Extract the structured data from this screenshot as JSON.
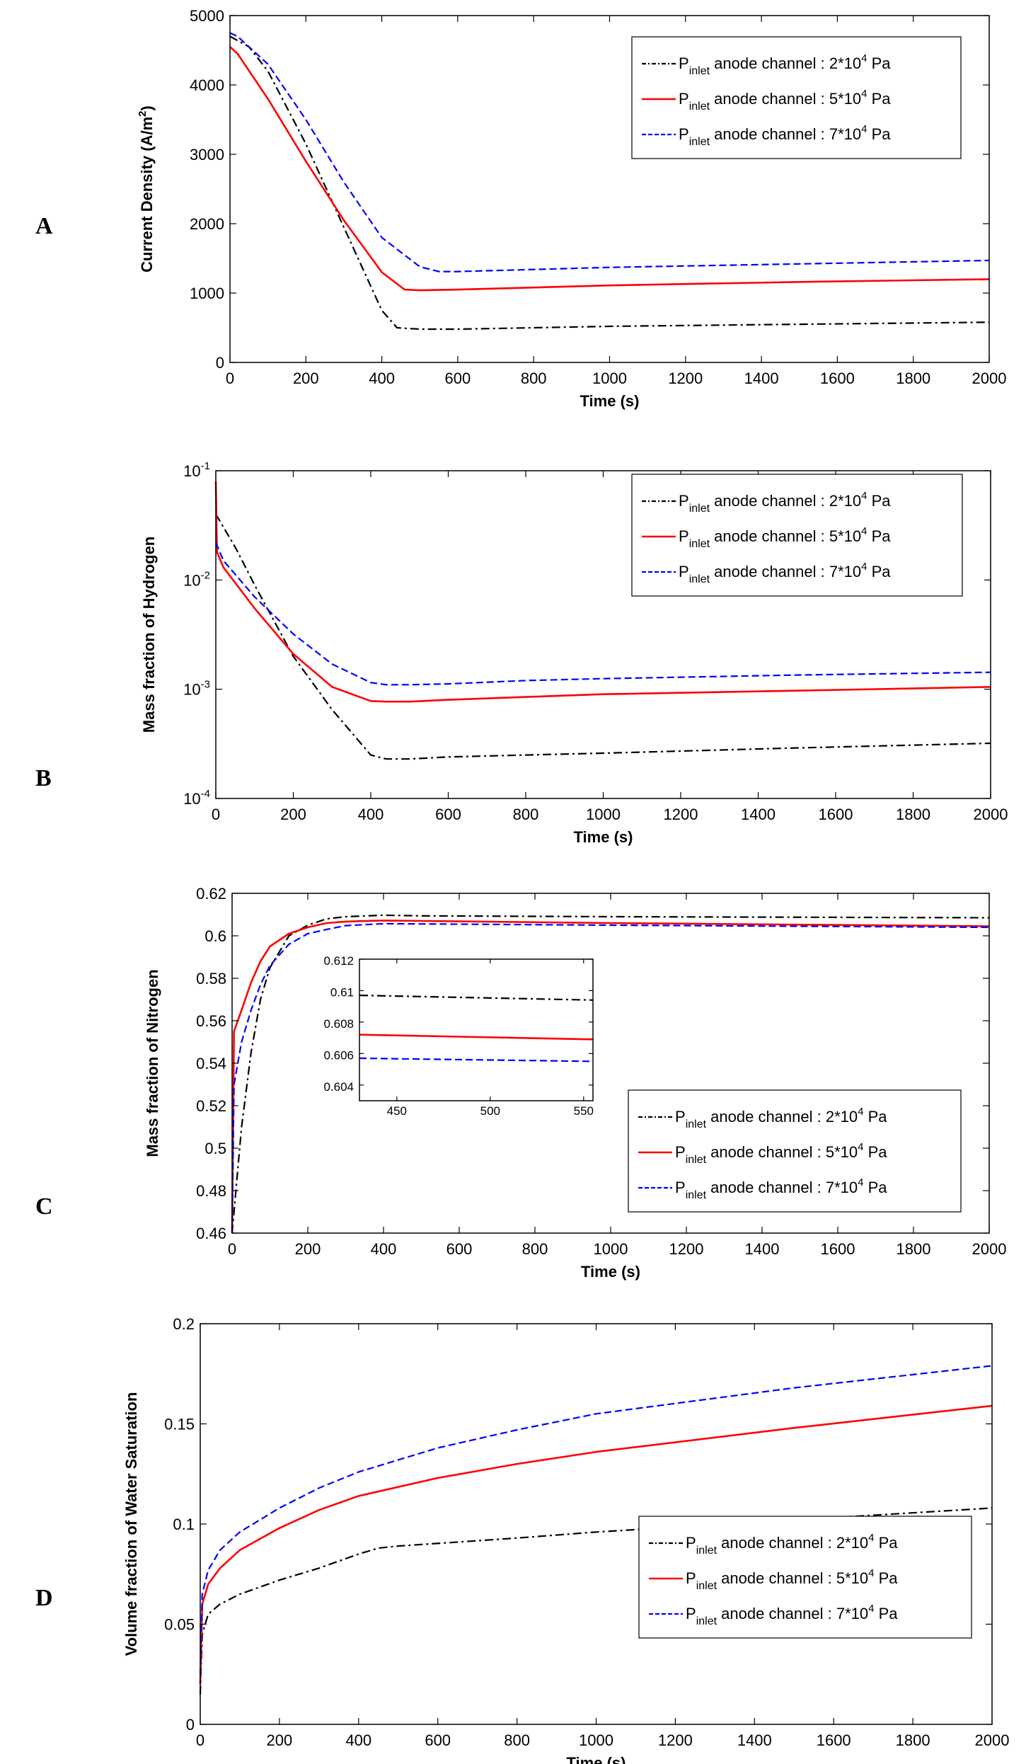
{
  "colors": {
    "s2": "#000000",
    "s5": "#ff0000",
    "s7": "#0000ff"
  },
  "legend": {
    "prefix": "P",
    "subscript": "inlet",
    "middle": " anode channel : ",
    "entries": [
      {
        "mantissa": "2*10",
        "exp": "4",
        "unit": " Pa"
      },
      {
        "mantissa": "5*10",
        "exp": "4",
        "unit": " Pa"
      },
      {
        "mantissa": "7*10",
        "exp": "4",
        "unit": " Pa"
      }
    ]
  },
  "chart_data": [
    {
      "panel": "A",
      "type": "line",
      "xlabel": "Time (s)",
      "ylabel": "Current Density (A/m",
      "ylabel_sup": "2",
      "ylabel_end": ")",
      "xlim": [
        0,
        2000
      ],
      "ylim": [
        0,
        5000
      ],
      "xticks": [
        "0",
        "200",
        "400",
        "600",
        "800",
        "1000",
        "1200",
        "1400",
        "1600",
        "1800",
        "2000"
      ],
      "yticks": [
        "0",
        "1000",
        "2000",
        "3000",
        "4000",
        "5000"
      ],
      "legend_position": "top-right",
      "series": [
        {
          "x": [
            0,
            50,
            100,
            200,
            300,
            400,
            440,
            500,
            600,
            800,
            1000,
            1500,
            2000
          ],
          "y": [
            4700,
            4550,
            4200,
            3150,
            1950,
            750,
            500,
            480,
            480,
            500,
            520,
            550,
            580
          ]
        },
        {
          "x": [
            0,
            20,
            100,
            200,
            300,
            400,
            460,
            500,
            600,
            800,
            1000,
            1500,
            2000
          ],
          "y": [
            4550,
            4450,
            3800,
            2900,
            2050,
            1300,
            1050,
            1040,
            1050,
            1080,
            1110,
            1160,
            1200
          ]
        },
        {
          "x": [
            0,
            20,
            100,
            200,
            300,
            400,
            500,
            550,
            600,
            800,
            1000,
            1500,
            2000
          ],
          "y": [
            4750,
            4700,
            4300,
            3500,
            2600,
            1800,
            1380,
            1310,
            1310,
            1340,
            1370,
            1420,
            1470
          ]
        }
      ]
    },
    {
      "panel": "B",
      "type": "line",
      "scale": "log",
      "xlabel": "Time (s)",
      "ylabel": "Mass fraction of Hydrogen",
      "xlim": [
        0,
        2000
      ],
      "ylim": [
        0.0001,
        0.1
      ],
      "xticks": [
        "0",
        "200",
        "400",
        "600",
        "800",
        "1000",
        "1200",
        "1400",
        "1600",
        "1800",
        "2000"
      ],
      "yticks": [
        {
          "base": "10",
          "exp": "-1",
          "value": 0.1
        },
        {
          "base": "10",
          "exp": "-2",
          "value": 0.01
        },
        {
          "base": "10",
          "exp": "-3",
          "value": 0.001
        },
        {
          "base": "10",
          "exp": "-4",
          "value": 0.0001
        }
      ],
      "legend_position": "top-right",
      "series": [
        {
          "x": [
            0,
            50,
            100,
            200,
            300,
            400,
            440,
            500,
            600,
            800,
            1000,
            1500,
            2000
          ],
          "y": [
            0.04,
            0.02,
            0.009,
            0.002,
            0.00065,
            0.00025,
            0.00023,
            0.00023,
            0.00024,
            0.00025,
            0.00026,
            0.00029,
            0.00032
          ]
        },
        {
          "x": [
            0,
            3,
            20,
            100,
            200,
            300,
            400,
            440,
            500,
            600,
            800,
            1000,
            1500,
            2000
          ],
          "y": [
            0.08,
            0.018,
            0.013,
            0.0055,
            0.0021,
            0.00105,
            0.00078,
            0.00077,
            0.00077,
            0.0008,
            0.00085,
            0.0009,
            0.00097,
            0.00105
          ]
        },
        {
          "x": [
            0,
            20,
            100,
            200,
            300,
            400,
            440,
            500,
            600,
            800,
            1000,
            1500,
            2000
          ],
          "y": [
            0.022,
            0.015,
            0.007,
            0.0032,
            0.0017,
            0.00115,
            0.0011,
            0.0011,
            0.00112,
            0.0012,
            0.00125,
            0.00135,
            0.00143
          ]
        }
      ]
    },
    {
      "panel": "C",
      "type": "line",
      "xlabel": "Time (s)",
      "ylabel": "Mass fraction of Nitrogen",
      "xlim": [
        0,
        2000
      ],
      "ylim": [
        0.46,
        0.62
      ],
      "xticks": [
        "0",
        "200",
        "400",
        "600",
        "800",
        "1000",
        "1200",
        "1400",
        "1600",
        "1800",
        "2000"
      ],
      "yticks": [
        "0.46",
        "0.48",
        "0.5",
        "0.52",
        "0.54",
        "0.56",
        "0.58",
        "0.6",
        "0.62"
      ],
      "legend_position": "bottom-right",
      "series": [
        {
          "x": [
            0,
            5,
            25,
            50,
            75,
            100,
            150,
            200,
            250,
            300,
            400,
            500,
            1000,
            2000
          ],
          "y": [
            0.46,
            0.47,
            0.51,
            0.545,
            0.57,
            0.585,
            0.6,
            0.605,
            0.608,
            0.609,
            0.6097,
            0.6094,
            0.609,
            0.6085
          ]
        },
        {
          "x": [
            0,
            5,
            25,
            50,
            75,
            100,
            150,
            200,
            250,
            300,
            400,
            500,
            1000,
            2000
          ],
          "y": [
            0.46,
            0.555,
            0.565,
            0.578,
            0.588,
            0.595,
            0.601,
            0.604,
            0.606,
            0.6067,
            0.6072,
            0.607,
            0.606,
            0.6045
          ]
        },
        {
          "x": [
            0,
            5,
            25,
            50,
            75,
            100,
            150,
            200,
            250,
            300,
            400,
            500,
            1000,
            2000
          ],
          "y": [
            0.46,
            0.53,
            0.55,
            0.565,
            0.577,
            0.586,
            0.596,
            0.601,
            0.603,
            0.6048,
            0.6057,
            0.6056,
            0.605,
            0.604
          ]
        }
      ],
      "inset": {
        "xlim": [
          430,
          555
        ],
        "ylim": [
          0.603,
          0.612
        ],
        "xticks": [
          "450",
          "500",
          "550"
        ],
        "yticks": [
          "0.604",
          "0.606",
          "0.608",
          "0.61",
          "0.612"
        ],
        "series": [
          {
            "x": [
              430,
              555
            ],
            "y": [
              0.6097,
              0.6094
            ]
          },
          {
            "x": [
              430,
              555
            ],
            "y": [
              0.6072,
              0.6069
            ]
          },
          {
            "x": [
              430,
              555
            ],
            "y": [
              0.6057,
              0.6055
            ]
          }
        ]
      }
    },
    {
      "panel": "D",
      "type": "line",
      "xlabel": "Time (s)",
      "ylabel": "Volume fraction of Water Saturation",
      "xlim": [
        0,
        2000
      ],
      "ylim": [
        0,
        0.2
      ],
      "xticks": [
        "0",
        "200",
        "400",
        "600",
        "800",
        "1000",
        "1200",
        "1400",
        "1600",
        "1800",
        "2000"
      ],
      "yticks": [
        "0",
        "0.05",
        "0.1",
        "0.15",
        "0.2"
      ],
      "legend_position": "bottom-right",
      "series": [
        {
          "x": [
            0,
            5,
            20,
            50,
            100,
            200,
            300,
            400,
            450,
            500,
            800,
            1000,
            1500,
            2000
          ],
          "y": [
            0.015,
            0.045,
            0.055,
            0.06,
            0.065,
            0.072,
            0.078,
            0.085,
            0.088,
            0.089,
            0.093,
            0.096,
            0.102,
            0.108
          ]
        },
        {
          "x": [
            0,
            5,
            20,
            50,
            100,
            200,
            300,
            400,
            600,
            800,
            1000,
            1500,
            2000
          ],
          "y": [
            0.02,
            0.06,
            0.07,
            0.078,
            0.087,
            0.098,
            0.107,
            0.114,
            0.123,
            0.13,
            0.136,
            0.148,
            0.159
          ]
        },
        {
          "x": [
            0,
            5,
            20,
            50,
            100,
            200,
            300,
            400,
            600,
            800,
            1000,
            1500,
            2000
          ],
          "y": [
            0.025,
            0.065,
            0.077,
            0.087,
            0.096,
            0.108,
            0.118,
            0.126,
            0.138,
            0.147,
            0.155,
            0.168,
            0.179
          ]
        }
      ]
    }
  ]
}
